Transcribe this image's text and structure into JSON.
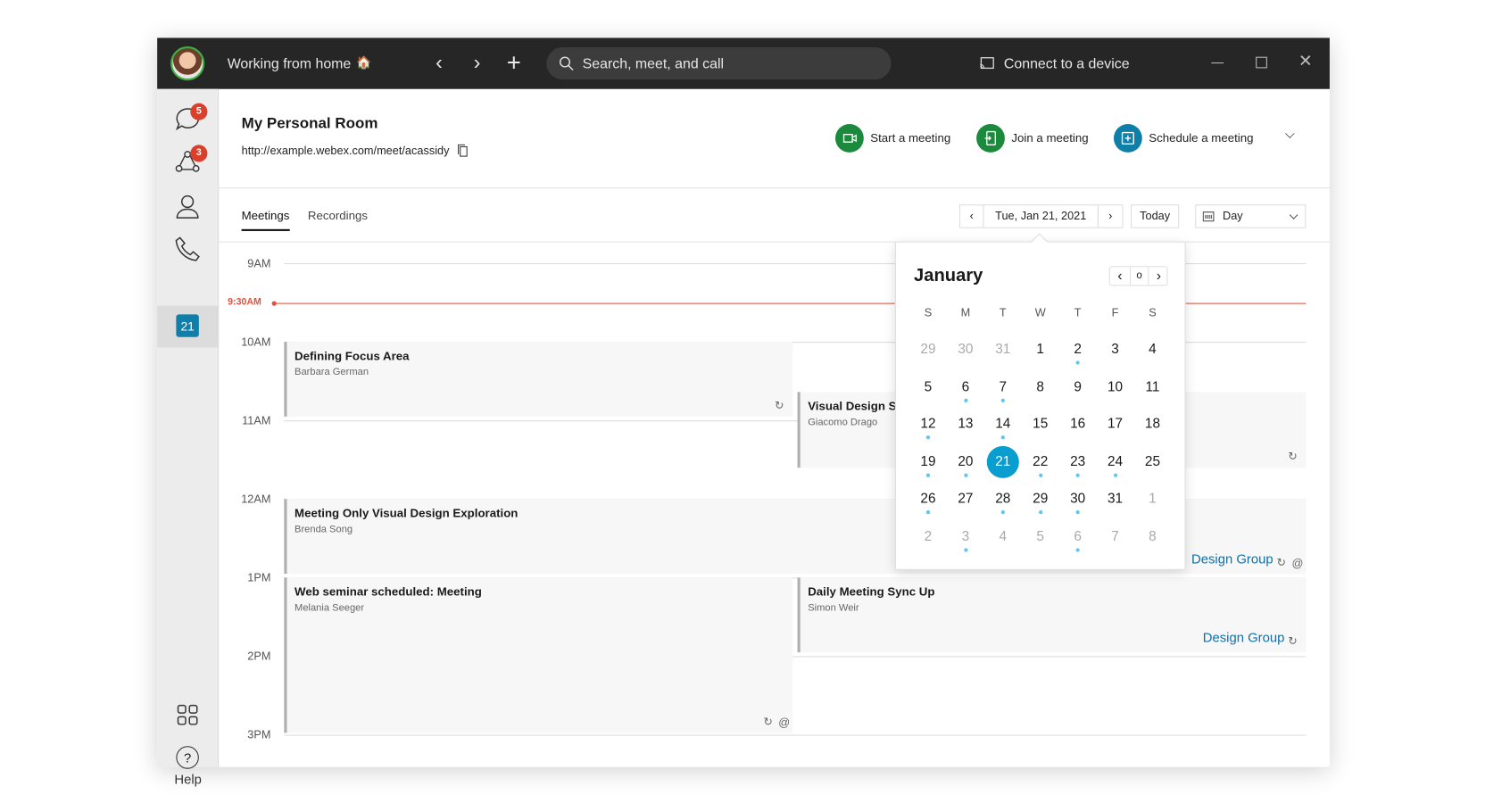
{
  "titlebar": {
    "status": "Working from home",
    "status_emoji": "🏠",
    "search_placeholder": "Search, meet, and call",
    "connect_label": "Connect to a device"
  },
  "sidebar": {
    "messaging_badge": "5",
    "teams_badge": "3",
    "calendar_day": "21",
    "help_label": "Help"
  },
  "room": {
    "title": "My Personal Room",
    "url": "http://example.webex.com/meet/acassidy"
  },
  "actions": {
    "start": "Start a meeting",
    "join": "Join a meeting",
    "schedule": "Schedule a meeting"
  },
  "colors": {
    "start": "#1c8a3c",
    "join": "#1c8a3c",
    "schedule": "#0f7ea8",
    "now": "#e0533f",
    "selected_day": "#0a9dcf",
    "event_dot": "#5cc7ef",
    "link": "#1170a8"
  },
  "tabs": [
    {
      "label": "Meetings",
      "active": true
    },
    {
      "label": "Recordings",
      "active": false
    }
  ],
  "datenav": {
    "date": "Tue, Jan 21, 2021",
    "today": "Today",
    "view": "Day"
  },
  "timeline": {
    "hours": [
      "9AM",
      "10AM",
      "11AM",
      "12AM",
      "1PM",
      "2PM",
      "3PM"
    ],
    "now_label": "9:30AM"
  },
  "events": [
    {
      "title": "Defining Focus Area",
      "host": "Barbara German",
      "start": 10,
      "end": 10.95,
      "column": "left",
      "recurring": true
    },
    {
      "title": "Visual Design Sh",
      "host": "Giacomo Drago",
      "start": 10.64,
      "end": 11.6,
      "column": "right",
      "recurring": true
    },
    {
      "title": "Meeting Only Visual Design Exploration",
      "host": "Brenda Song",
      "start": 12,
      "end": 12.95,
      "column": "full",
      "link": "Design Group",
      "recurring": true,
      "at": true
    },
    {
      "title": "Web seminar scheduled: Meeting",
      "host": "Melania Seeger",
      "start": 13,
      "end": 14.97,
      "column": "left",
      "recurring": true,
      "at": true
    },
    {
      "title": "Daily Meeting Sync Up",
      "host": "Simon Weir",
      "start": 13,
      "end": 13.95,
      "column": "right",
      "link": "Design Group",
      "recurring": true
    }
  ],
  "calendar": {
    "month": "January",
    "weekdays": [
      "S",
      "M",
      "T",
      "W",
      "T",
      "F",
      "S"
    ],
    "weeks": [
      [
        {
          "d": "29",
          "m": 1
        },
        {
          "d": "30",
          "m": 1
        },
        {
          "d": "31",
          "m": 1
        },
        {
          "d": "1"
        },
        {
          "d": "2",
          "e": 1
        },
        {
          "d": "3"
        },
        {
          "d": "4"
        }
      ],
      [
        {
          "d": "5"
        },
        {
          "d": "6",
          "e": 1
        },
        {
          "d": "7",
          "e": 1
        },
        {
          "d": "8"
        },
        {
          "d": "9"
        },
        {
          "d": "10"
        },
        {
          "d": "11"
        }
      ],
      [
        {
          "d": "12",
          "e": 1
        },
        {
          "d": "13"
        },
        {
          "d": "14",
          "e": 1
        },
        {
          "d": "15"
        },
        {
          "d": "16"
        },
        {
          "d": "17"
        },
        {
          "d": "18"
        }
      ],
      [
        {
          "d": "19",
          "e": 1
        },
        {
          "d": "20",
          "e": 1
        },
        {
          "d": "21",
          "s": 1
        },
        {
          "d": "22",
          "e": 1
        },
        {
          "d": "23",
          "e": 1
        },
        {
          "d": "24",
          "e": 1
        },
        {
          "d": "25"
        }
      ],
      [
        {
          "d": "26",
          "e": 1
        },
        {
          "d": "27"
        },
        {
          "d": "28",
          "e": 1
        },
        {
          "d": "29",
          "e": 1
        },
        {
          "d": "30",
          "e": 1
        },
        {
          "d": "31"
        },
        {
          "d": "1",
          "m": 1
        }
      ],
      [
        {
          "d": "2",
          "m": 1
        },
        {
          "d": "3",
          "m": 1,
          "e": 1
        },
        {
          "d": "4",
          "m": 1
        },
        {
          "d": "5",
          "m": 1
        },
        {
          "d": "6",
          "m": 1,
          "e": 1
        },
        {
          "d": "7",
          "m": 1
        },
        {
          "d": "8",
          "m": 1
        }
      ]
    ]
  }
}
